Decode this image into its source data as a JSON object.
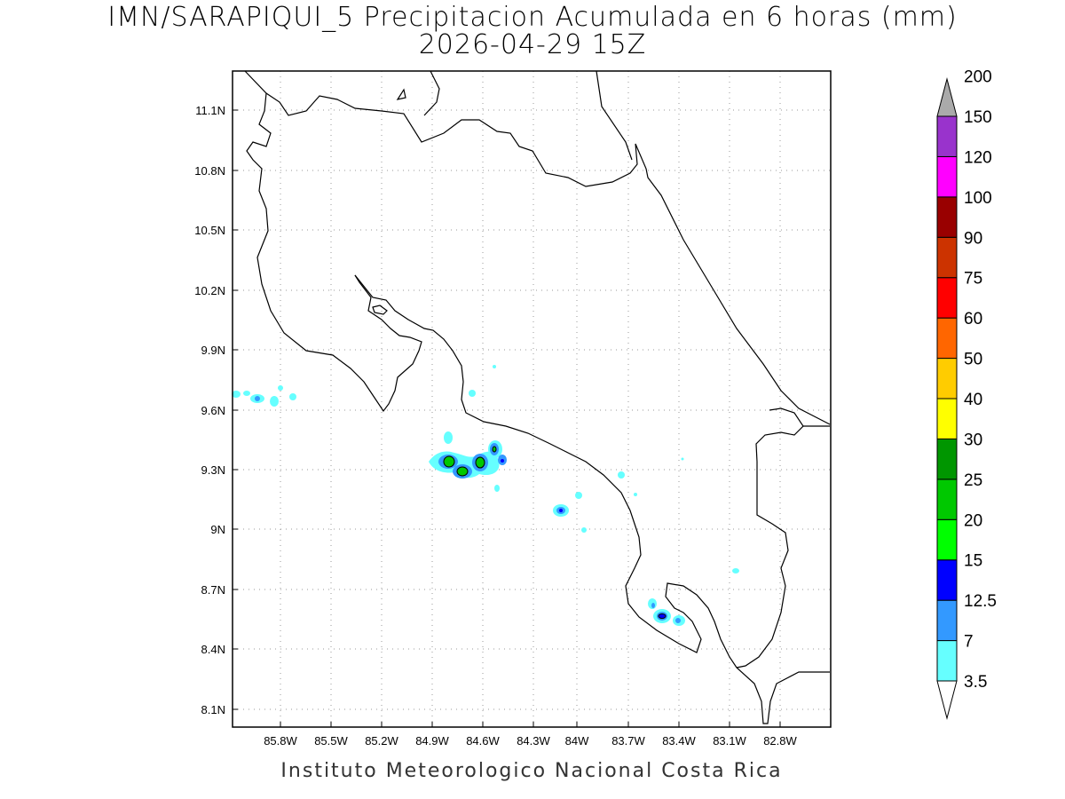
{
  "title_line1": "IMN/SARAPIQUI_5 Precipitacion Acumulada en 6 horas (mm)",
  "title_line2": "2026-04-29 15Z",
  "footer": "Instituto Meteorologico Nacional Costa Rica",
  "map": {
    "lon_range": [
      -86.0,
      -82.5
    ],
    "lat_range": [
      8.0,
      11.3
    ],
    "lon_ticks": [
      "85.8W",
      "85.5W",
      "85.2W",
      "84.9W",
      "84.6W",
      "84.3W",
      "84W",
      "83.7W",
      "83.4W",
      "83.1W",
      "82.8W"
    ],
    "lat_ticks": [
      "11.1N",
      "10.8N",
      "10.5N",
      "10.2N",
      "9.9N",
      "9.6N",
      "9.3N",
      "9N",
      "8.7N",
      "8.4N",
      "8.1N"
    ],
    "grid": "dotted"
  },
  "colorbar": {
    "levels": [
      "3.5",
      "7",
      "12.5",
      "15",
      "20",
      "25",
      "30",
      "40",
      "50",
      "60",
      "75",
      "90",
      "100",
      "120",
      "150",
      "200"
    ],
    "colors": [
      "#66ffff",
      "#3399ff",
      "#0000ff",
      "#00ff00",
      "#00c800",
      "#009600",
      "#ffff00",
      "#ffcc00",
      "#ff6600",
      "#ff0000",
      "#cc3300",
      "#990000",
      "#ff00ff",
      "#9933cc",
      "#f5f5f5",
      "#aaaaaa"
    ]
  }
}
